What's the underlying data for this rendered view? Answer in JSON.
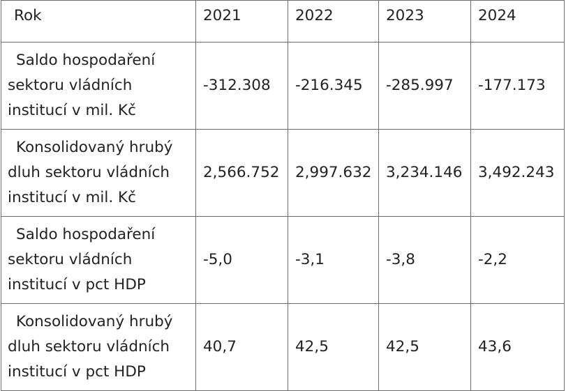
{
  "table": {
    "header": {
      "label": "Rok",
      "years": [
        "2021",
        "2022",
        "2023",
        "2024"
      ]
    },
    "rows": [
      {
        "label": "Saldo hospodaření sektoru vládních institucí v mil. Kč",
        "values": [
          "-312.308",
          "-216.345",
          "-285.997",
          "-177.173"
        ]
      },
      {
        "label": "Konsolidovaný hrubý dluh sektoru vládních institucí v mil. Kč",
        "values": [
          "2,566.752",
          "2,997.632",
          "3,234.146",
          "3,492.243"
        ]
      },
      {
        "label": "Saldo hospodaření sektoru vládních institucí v pct HDP",
        "values": [
          "-5,0",
          "-3,1",
          "-3,8",
          "-2,2"
        ]
      },
      {
        "label": "Konsolidovaný hrubý dluh sektoru vládních institucí v pct HDP",
        "values": [
          "40,7",
          "42,5",
          "42,5",
          "43,6"
        ]
      }
    ]
  }
}
